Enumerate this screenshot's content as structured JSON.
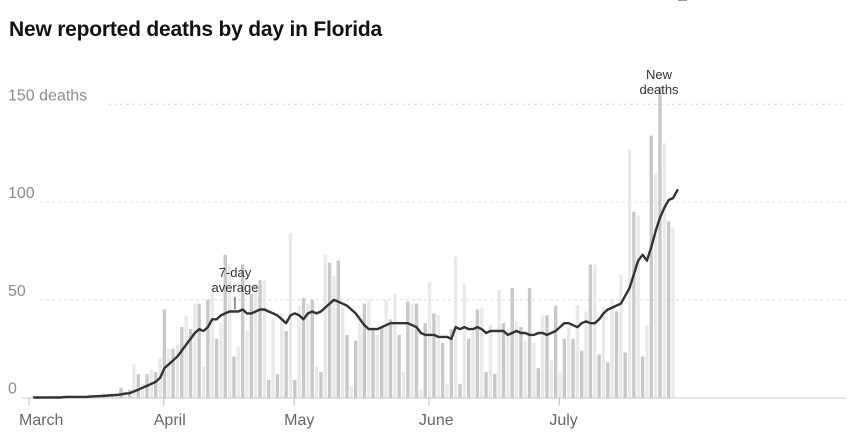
{
  "title": "New reported deaths by day in Florida",
  "chart_data": {
    "type": "bar",
    "title": "New reported deaths by day in Florida",
    "xlabel": "",
    "ylabel": "",
    "ylim": [
      0,
      165
    ],
    "y_ticks": [
      {
        "value": 150,
        "label": "150 deaths"
      },
      {
        "value": 100,
        "label": "100"
      },
      {
        "value": 50,
        "label": "50"
      },
      {
        "value": 0,
        "label": "0"
      }
    ],
    "x_ticks": [
      {
        "day": 0,
        "label": "March"
      },
      {
        "day": 31,
        "label": "April"
      },
      {
        "day": 61,
        "label": "May"
      },
      {
        "day": 92,
        "label": "June"
      },
      {
        "day": 122,
        "label": "July"
      }
    ],
    "grid": "horizontal-dashed",
    "colors": {
      "bar": "#c8c8c8",
      "bar_alt": "#e9e9e9",
      "line": "#333333",
      "grid": "#dcdcdc"
    },
    "series": [
      {
        "name": "New deaths",
        "type": "bar",
        "start": "Mar 1",
        "values": [
          0,
          0,
          0,
          0,
          0,
          1,
          0,
          0,
          1,
          0,
          0,
          0,
          0,
          1,
          0,
          1,
          2,
          1,
          2,
          2,
          5,
          3,
          4,
          17,
          12,
          7,
          12,
          14,
          13,
          20,
          45,
          25,
          25,
          27,
          36,
          42,
          35,
          48,
          48,
          16,
          50,
          57,
          30,
          38,
          73,
          68,
          21,
          26,
          68,
          34,
          53,
          58,
          60,
          60,
          9,
          40,
          12,
          43,
          34,
          84,
          9,
          47,
          51,
          48,
          50,
          16,
          13,
          73,
          69,
          62,
          70,
          46,
          32,
          6,
          29,
          42,
          48,
          50,
          35,
          32,
          36,
          50,
          40,
          53,
          32,
          13,
          49,
          48,
          48,
          4,
          38,
          59,
          43,
          42,
          28,
          7,
          35,
          72,
          7,
          58,
          30,
          34,
          45,
          46,
          13,
          37,
          12,
          55,
          38,
          35,
          56,
          39,
          36,
          29,
          56,
          28,
          15,
          42,
          42,
          19,
          47,
          13,
          30,
          36,
          30,
          47,
          24,
          44,
          68,
          68,
          22,
          46,
          18,
          50,
          44,
          63,
          23,
          127,
          95,
          93,
          21,
          37,
          134,
          114,
          159,
          130,
          90,
          87
        ],
        "highlight_index": 150
      },
      {
        "name": "7-day average",
        "type": "line",
        "start": "Mar 1",
        "values": [
          0,
          0,
          0,
          0,
          0,
          0,
          0,
          0.2,
          0.3,
          0.3,
          0.3,
          0.3,
          0.3,
          0.5,
          0.6,
          0.7,
          0.8,
          1,
          1.2,
          1.3,
          1.6,
          2,
          2.2,
          3.1,
          4,
          5,
          6,
          7,
          8,
          10,
          15,
          17,
          19,
          21,
          24,
          27,
          30,
          33,
          35,
          34,
          36,
          40,
          40,
          42,
          43,
          44,
          44,
          44,
          45,
          43,
          43,
          44,
          45,
          45,
          44,
          43,
          42,
          40,
          38,
          42,
          43,
          42,
          40,
          43,
          44,
          43,
          44,
          46,
          48,
          50,
          49,
          48,
          47,
          45,
          43,
          40,
          37,
          35,
          35,
          35,
          36,
          37,
          38,
          38,
          38,
          38,
          38,
          37,
          36,
          33,
          32,
          32,
          32,
          31,
          31,
          31,
          30,
          36,
          35,
          36,
          35,
          35,
          36,
          35,
          33,
          34,
          34,
          34,
          34,
          32,
          33,
          34,
          33,
          33,
          32,
          32,
          33,
          33,
          32,
          33,
          34,
          36,
          38,
          38,
          37,
          36,
          38,
          39,
          38,
          38,
          40,
          43,
          45,
          46,
          47,
          48,
          52,
          56,
          63,
          70,
          73,
          70,
          77,
          85,
          92,
          97,
          101,
          102,
          106
        ]
      }
    ],
    "annotations": [
      {
        "text_lines": [
          "7-day",
          "average"
        ],
        "points_to": "7-day average",
        "day": 46
      },
      {
        "text_lines": [
          "New",
          "deaths"
        ],
        "points_to": "New deaths",
        "day": 150
      }
    ]
  }
}
